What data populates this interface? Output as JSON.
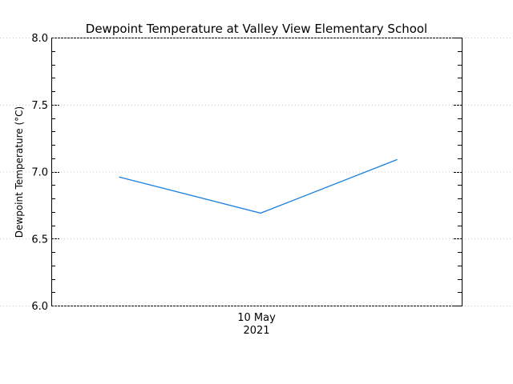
{
  "chart_data": {
    "type": "line",
    "title": "Dewpoint Temperature at Valley View Elementary School",
    "xlabel": "",
    "ylabel": "Dewpoint Temperature (°C)",
    "ylim": [
      6.0,
      8.0
    ],
    "yticks": [
      "6.0",
      "6.5",
      "7.0",
      "7.5",
      "8.0"
    ],
    "y_minor_step": 0.1,
    "xtick_labels": [
      {
        "line1": "10 May",
        "line2": "2021",
        "x_frac": 0.5
      }
    ],
    "grid": true,
    "legend": null,
    "series": [
      {
        "name": "Dewpoint Temperature",
        "color": "#1a7fe0",
        "points": [
          {
            "x_frac": 0.165,
            "y": 6.96
          },
          {
            "x_frac": 0.51,
            "y": 6.69
          },
          {
            "x_frac": 0.843,
            "y": 7.09
          }
        ]
      }
    ]
  },
  "colors": {
    "line": "#1a7fe0",
    "axis": "#000000",
    "grid": "#c8c8c8",
    "background": "#ffffff"
  }
}
